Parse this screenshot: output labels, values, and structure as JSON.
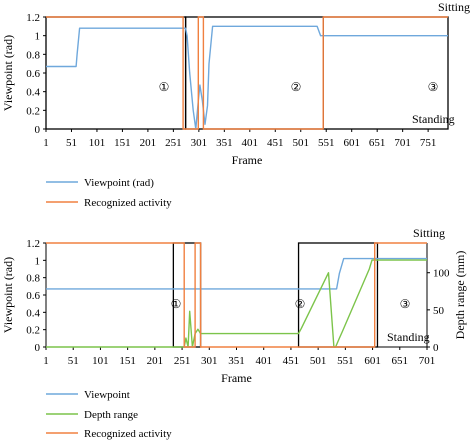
{
  "colors": {
    "viewpoint": "#6fa8dc",
    "activity": "#f08040",
    "depth": "#7cc44a",
    "box": "#000000"
  },
  "chart_data": [
    {
      "type": "line",
      "xlabel": "Frame",
      "ylabel": "Viewpoint (rad)",
      "xlim": [
        1,
        790
      ],
      "ylim": [
        0,
        1.2
      ],
      "xticks": [
        "1",
        "51",
        "101",
        "151",
        "201",
        "251",
        "301",
        "351",
        "401",
        "451",
        "501",
        "551",
        "601",
        "651",
        "701",
        "751"
      ],
      "yticks": [
        "0",
        "0.2",
        "0.4",
        "0.6",
        "0.8",
        "1",
        "1.2"
      ],
      "state_labels": {
        "top": "Sitting",
        "bottom": "Standing"
      },
      "phase_labels": [
        "①",
        "②",
        "③"
      ],
      "phase_boxes": [
        {
          "x_start": 1,
          "x_end": 275
        },
        {
          "x_start": 275,
          "x_end": 545
        },
        {
          "x_start": 545,
          "x_end": 790
        }
      ],
      "legend": [
        "Viewpoint (rad)",
        "Recognized activity"
      ],
      "series": [
        {
          "name": "Viewpoint (rad)",
          "x": [
            1,
            60,
            62,
            67,
            275,
            278,
            283,
            290,
            295,
            300,
            303,
            308,
            313,
            318,
            321,
            328,
            533,
            540,
            545,
            550,
            790
          ],
          "y": [
            0.67,
            0.67,
            0.8,
            1.08,
            1.08,
            1.0,
            0.6,
            0.2,
            0.0,
            0.3,
            0.47,
            0.3,
            0.05,
            0.25,
            0.7,
            1.1,
            1.1,
            1.0,
            1.0,
            1.0,
            1.0
          ]
        },
        {
          "name": "Recognized activity",
          "x": [
            1,
            270,
            270,
            300,
            300,
            310,
            310,
            545,
            545,
            790
          ],
          "y": [
            1.2,
            1.2,
            0,
            0,
            1.2,
            1.2,
            0,
            0,
            1.2,
            1.2
          ]
        }
      ]
    },
    {
      "type": "line",
      "xlabel": "Frame",
      "ylabel": "Viewpoint (rad)",
      "ylabel_right": "Depth range (mm)",
      "xlim": [
        1,
        701
      ],
      "ylim": [
        0,
        1.2
      ],
      "ylim_right": [
        0,
        140
      ],
      "xticks": [
        "1",
        "51",
        "101",
        "151",
        "201",
        "251",
        "301",
        "351",
        "401",
        "451",
        "501",
        "551",
        "601",
        "651",
        "701"
      ],
      "yticks": [
        "0",
        "0.2",
        "0.4",
        "0.6",
        "0.8",
        "1",
        "1.2"
      ],
      "yticks_right": [
        "0",
        "50",
        "100"
      ],
      "state_labels": {
        "top": "Sitting",
        "bottom": "Standing"
      },
      "phase_labels": [
        "①",
        "②",
        "③"
      ],
      "phase_boxes": [
        {
          "x_start": 235,
          "x_end": 285
        },
        {
          "x_start": 465,
          "x_end": 610
        }
      ],
      "legend": [
        "Viewpoint",
        "Depth range",
        "Recognized activity"
      ],
      "series": [
        {
          "name": "Viewpoint",
          "x": [
            1,
            535,
            540,
            548,
            701
          ],
          "y": [
            0.67,
            0.67,
            0.85,
            1.02,
            1.02
          ]
        },
        {
          "name": "Depth range",
          "axis": "right",
          "x": [
            1,
            255,
            258,
            262,
            265,
            270,
            275,
            280,
            285,
            465,
            470,
            520,
            530,
            533,
            540,
            545,
            595,
            600,
            605,
            610,
            701
          ],
          "y": [
            0,
            0,
            12,
            0,
            48,
            0,
            18,
            24,
            18,
            18,
            25,
            100,
            0,
            0,
            12,
            20,
            105,
            117,
            117,
            117,
            117
          ]
        },
        {
          "name": "Recognized activity",
          "x": [
            1,
            255,
            255,
            275,
            275,
            285,
            285,
            605,
            605,
            701
          ],
          "y": [
            1.2,
            1.2,
            0,
            0,
            1.2,
            1.2,
            0,
            0,
            1.2,
            1.2
          ]
        }
      ]
    }
  ]
}
